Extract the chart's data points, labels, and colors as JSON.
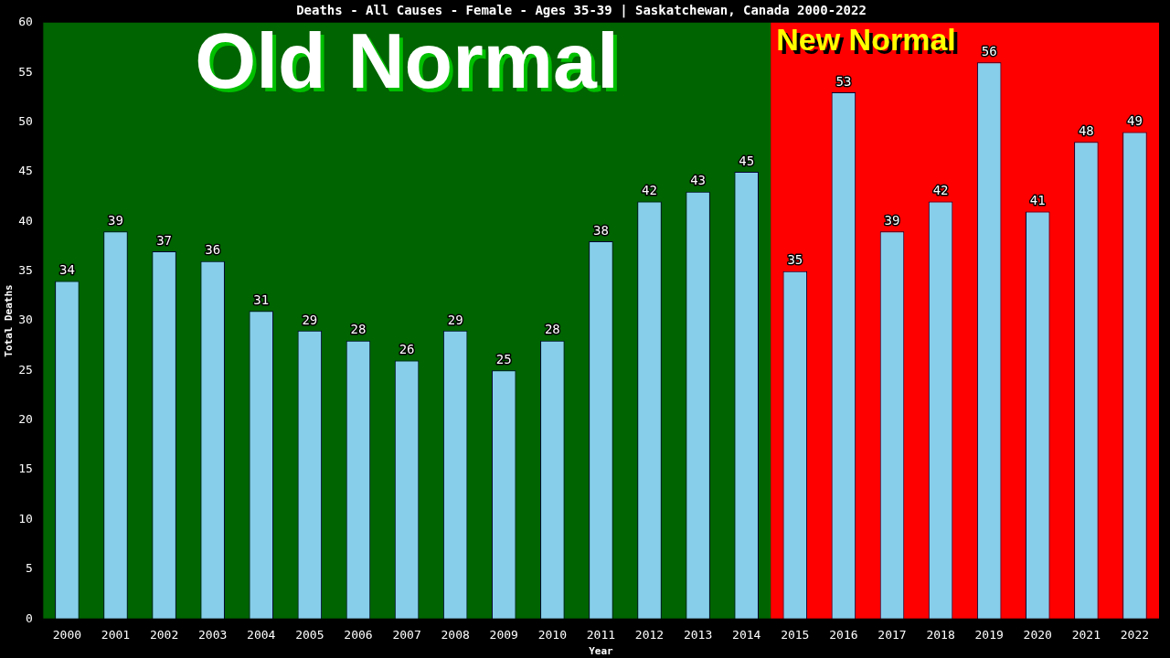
{
  "chart_data": {
    "type": "bar",
    "title": "Deaths - All Causes - Female - Ages 35-39 | Saskatchewan, Canada 2000-2022",
    "xlabel": "Year",
    "ylabel": "Total Deaths",
    "categories": [
      "2000",
      "2001",
      "2002",
      "2003",
      "2004",
      "2005",
      "2006",
      "2007",
      "2008",
      "2009",
      "2010",
      "2011",
      "2012",
      "2013",
      "2014",
      "2015",
      "2016",
      "2017",
      "2018",
      "2019",
      "2020",
      "2021",
      "2022"
    ],
    "values": [
      34,
      39,
      37,
      36,
      31,
      29,
      28,
      26,
      29,
      25,
      28,
      38,
      42,
      43,
      45,
      35,
      53,
      39,
      42,
      56,
      41,
      48,
      49
    ],
    "color": "#87ceeb",
    "ylim": [
      0,
      60
    ],
    "yticks": [
      0,
      5,
      10,
      15,
      20,
      25,
      30,
      35,
      40,
      45,
      50,
      55,
      60
    ],
    "grid": false,
    "legend": false,
    "data_labels": true,
    "bands": [
      {
        "axis": "x",
        "from": "2000",
        "to": "2014",
        "label": "Old Normal",
        "color": "#006400"
      },
      {
        "axis": "x",
        "from": "2015",
        "to": "2022",
        "label": "New Normal",
        "color": "#ff0000"
      }
    ]
  }
}
